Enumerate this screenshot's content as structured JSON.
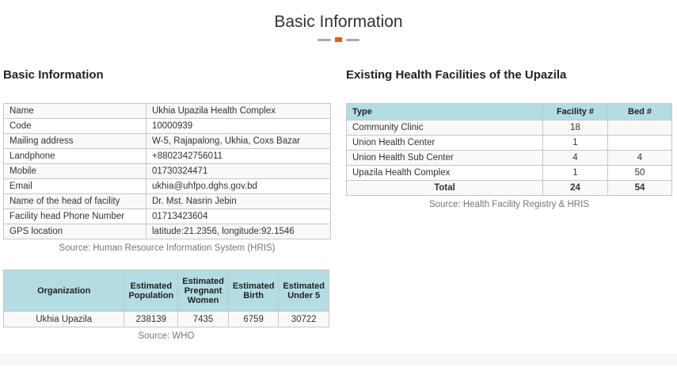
{
  "page": {
    "title": "Basic Information"
  },
  "colors": {
    "accent_orange": "#e25822",
    "divider_gray": "#a9a9a9",
    "table_header_blue": "#b3dce3"
  },
  "basic_info": {
    "heading": "Basic Information",
    "rows": [
      {
        "label": "Name",
        "value": "Ukhia Upazila Health Complex"
      },
      {
        "label": "Code",
        "value": "10000939"
      },
      {
        "label": "Mailing address",
        "value": "W-5, Rajapalong, Ukhia, Coxs Bazar"
      },
      {
        "label": "Landphone",
        "value": "+8802342756011"
      },
      {
        "label": "Mobile",
        "value": "01730324471"
      },
      {
        "label": "Email",
        "value": "ukhia@uhfpo.dghs.gov.bd"
      },
      {
        "label": "Name of the head of facility",
        "value": "Dr. Mst. Nasrin Jebin"
      },
      {
        "label": "Facility head Phone Number",
        "value": "01713423604"
      },
      {
        "label": "GPS location",
        "value": "latitude:21.2356, longitude:92.1546"
      }
    ],
    "source": "Source: Human Resource Information System (HRIS)"
  },
  "facilities": {
    "heading": "Existing Health Facilities of the Upazila",
    "columns": [
      "Type",
      "Facility #",
      "Bed #"
    ],
    "rows": [
      {
        "type": "Community Clinic",
        "facility": "18",
        "bed": ""
      },
      {
        "type": "Union Health Center",
        "facility": "1",
        "bed": ""
      },
      {
        "type": "Union Health Sub Center",
        "facility": "4",
        "bed": "4"
      },
      {
        "type": "Upazila Health Complex",
        "facility": "1",
        "bed": "50"
      }
    ],
    "total": {
      "label": "Total",
      "facility": "24",
      "bed": "54"
    },
    "source": "Source: Health Facility Registry & HRIS"
  },
  "population": {
    "columns": [
      "Organization",
      "Estimated Population",
      "Estimated Pregnant Women",
      "Estimated Birth",
      "Estimated Under 5"
    ],
    "row": {
      "organization": "Ukhia Upazila",
      "population": "238139",
      "pregnant_women": "7435",
      "birth": "6759",
      "under5": "30722"
    },
    "source": "Source: WHO"
  }
}
